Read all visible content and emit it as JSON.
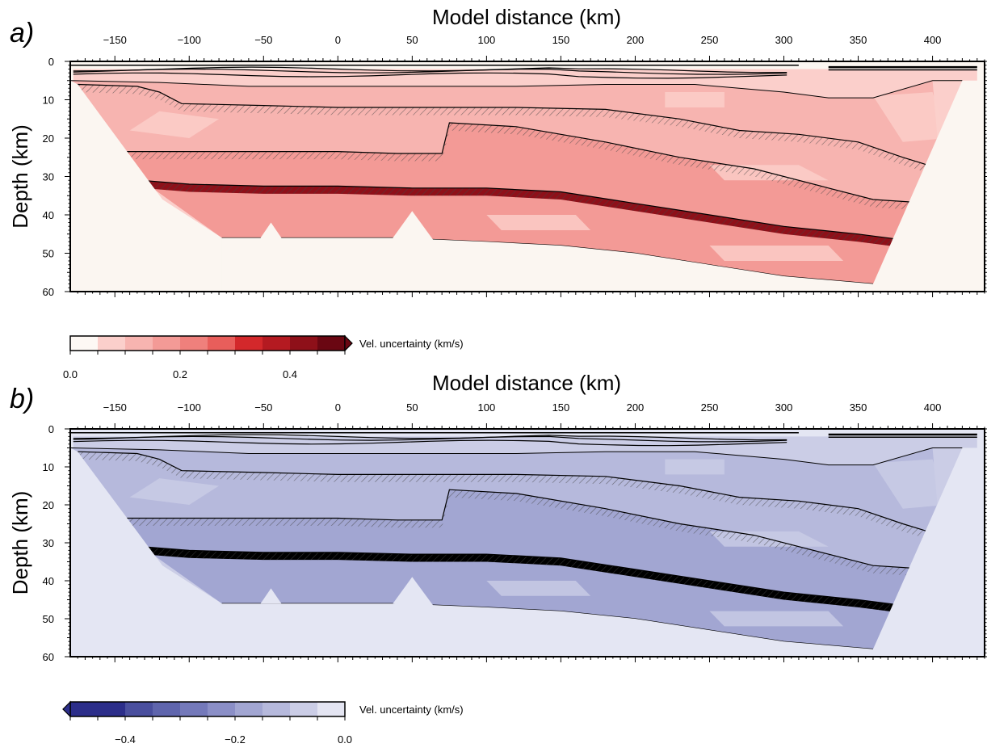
{
  "chart_data": [
    {
      "type": "heatmap",
      "panel_label": "a)",
      "xlabel": "Model distance (km)",
      "ylabel": "Depth (km)",
      "xlim": [
        -180,
        435
      ],
      "ylim": [
        0,
        60
      ],
      "y_inverted": true,
      "x_axis_position": "top",
      "xticks": [
        -150,
        -100,
        -50,
        0,
        50,
        100,
        150,
        200,
        250,
        300,
        350,
        400
      ],
      "yticks": [
        0,
        10,
        20,
        30,
        40,
        50,
        60
      ],
      "tick_labels_x": [
        "−150",
        "−100",
        "−50",
        "0",
        "50",
        "100",
        "150",
        "200",
        "250",
        "300",
        "350",
        "400"
      ],
      "tick_labels_y": [
        "0",
        "10",
        "20",
        "30",
        "40",
        "50",
        "60"
      ],
      "background_color": "#fbf6f1",
      "colorbar": {
        "title": "Vel. uncertainty (km/s)",
        "range": [
          0,
          0.5
        ],
        "levels": [
          0,
          0.05,
          0.1,
          0.15,
          0.2,
          0.25,
          0.3,
          0.35,
          0.4,
          0.45,
          0.5
        ],
        "colors": [
          "#fdf8f4",
          "#fbcfcb",
          "#f7b4b0",
          "#f39a96",
          "#ef807c",
          "#e85e5b",
          "#d3282b",
          "#b41a21",
          "#8e1019",
          "#6a0712"
        ],
        "tick_values": [
          0,
          0.2,
          0.4
        ],
        "tick_labels": [
          "0.0",
          "0.2",
          "0.4"
        ],
        "extend": "max"
      },
      "model_boundary_depth_km": {
        "x": [
          -180,
          -120,
          -60,
          0,
          60,
          120,
          180,
          240,
          300,
          330,
          360,
          400,
          420
        ],
        "y": [
          5,
          5.5,
          6.5,
          6.5,
          6.5,
          6.5,
          6,
          6,
          8,
          9.5,
          9.5,
          5,
          5
        ]
      },
      "interface_depths_km": [
        {
          "x": [
            -175,
            -135,
            -120,
            -105,
            -50,
            0,
            70,
            120,
            180,
            230,
            270,
            310,
            350,
            380,
            405
          ],
          "y": [
            6,
            6.5,
            8,
            11,
            11.5,
            12,
            12,
            12,
            12.5,
            15,
            18,
            19,
            21,
            25,
            28
          ]
        },
        {
          "x": [
            -148,
            -50,
            0,
            40,
            70,
            75,
            120,
            180,
            230,
            280,
            330,
            360,
            400
          ],
          "y": [
            23.5,
            23.5,
            23.5,
            24,
            24,
            16,
            17,
            21,
            25,
            28,
            33,
            36,
            37
          ]
        },
        {
          "x": [
            -132,
            -100,
            -50,
            0,
            50,
            100,
            150,
            200,
            250,
            300,
            350,
            390
          ],
          "y": [
            31,
            32,
            32.5,
            32.5,
            33,
            33,
            34,
            37,
            40,
            43,
            45,
            47
          ]
        },
        {
          "x": [
            -78,
            -10,
            40,
            100,
            150,
            200,
            250,
            300,
            360
          ],
          "y": [
            46,
            46,
            46,
            47,
            48,
            50,
            53,
            56,
            58
          ]
        }
      ]
    },
    {
      "type": "heatmap",
      "panel_label": "b)",
      "xlabel": "Model distance (km)",
      "ylabel": "Depth (km)",
      "xlim": [
        -180,
        435
      ],
      "ylim": [
        0,
        60
      ],
      "y_inverted": true,
      "x_axis_position": "top",
      "xticks": [
        -150,
        -100,
        -50,
        0,
        50,
        100,
        150,
        200,
        250,
        300,
        350,
        400
      ],
      "yticks": [
        0,
        10,
        20,
        30,
        40,
        50,
        60
      ],
      "tick_labels_x": [
        "−150",
        "−100",
        "−50",
        "0",
        "50",
        "100",
        "150",
        "200",
        "250",
        "300",
        "350",
        "400"
      ],
      "tick_labels_y": [
        "0",
        "10",
        "20",
        "30",
        "40",
        "50",
        "60"
      ],
      "background_color": "#e4e6f3",
      "colorbar": {
        "title": "Vel. uncertainty (km/s)",
        "range": [
          -0.5,
          0
        ],
        "levels": [
          -0.5,
          -0.45,
          -0.4,
          -0.35,
          -0.3,
          -0.25,
          -0.2,
          -0.15,
          -0.1,
          -0.05,
          0
        ],
        "colors": [
          "#2c2e8a",
          "#2c2e8a",
          "#4a4f9e",
          "#5f65ad",
          "#7479ba",
          "#8b8fc7",
          "#a2a6d2",
          "#b6b9dc",
          "#cbcde6",
          "#e4e5f2"
        ],
        "tick_values": [
          -0.4,
          -0.2,
          0
        ],
        "tick_labels": [
          "−0.4",
          "−0.2",
          "0.0"
        ],
        "extend": "min"
      },
      "model_boundary_depth_km": {
        "x": [
          -180,
          -120,
          -60,
          0,
          60,
          120,
          180,
          240,
          300,
          330,
          360,
          400,
          420
        ],
        "y": [
          5,
          5.5,
          6.5,
          6.5,
          6.5,
          6.5,
          6,
          6,
          8,
          9.5,
          9.5,
          5,
          5
        ]
      },
      "interface_depths_km": [
        {
          "x": [
            -175,
            -135,
            -120,
            -105,
            -50,
            0,
            70,
            120,
            180,
            230,
            270,
            310,
            350,
            380,
            405
          ],
          "y": [
            6,
            6.5,
            8,
            11,
            11.5,
            12,
            12,
            12,
            12.5,
            15,
            18,
            19,
            21,
            25,
            28
          ]
        },
        {
          "x": [
            -148,
            -50,
            0,
            40,
            70,
            75,
            120,
            180,
            230,
            280,
            330,
            360,
            400
          ],
          "y": [
            23.5,
            23.5,
            23.5,
            24,
            24,
            16,
            17,
            21,
            25,
            28,
            33,
            36,
            37
          ]
        },
        {
          "x": [
            -132,
            -100,
            -50,
            0,
            50,
            100,
            150,
            200,
            250,
            300,
            350,
            390
          ],
          "y": [
            31,
            32,
            32.5,
            32.5,
            33,
            33,
            34,
            37,
            40,
            43,
            45,
            47
          ]
        },
        {
          "x": [
            -78,
            -10,
            40,
            100,
            150,
            200,
            250,
            300,
            360
          ],
          "y": [
            46,
            46,
            46,
            47,
            48,
            50,
            53,
            56,
            58
          ]
        }
      ]
    }
  ]
}
